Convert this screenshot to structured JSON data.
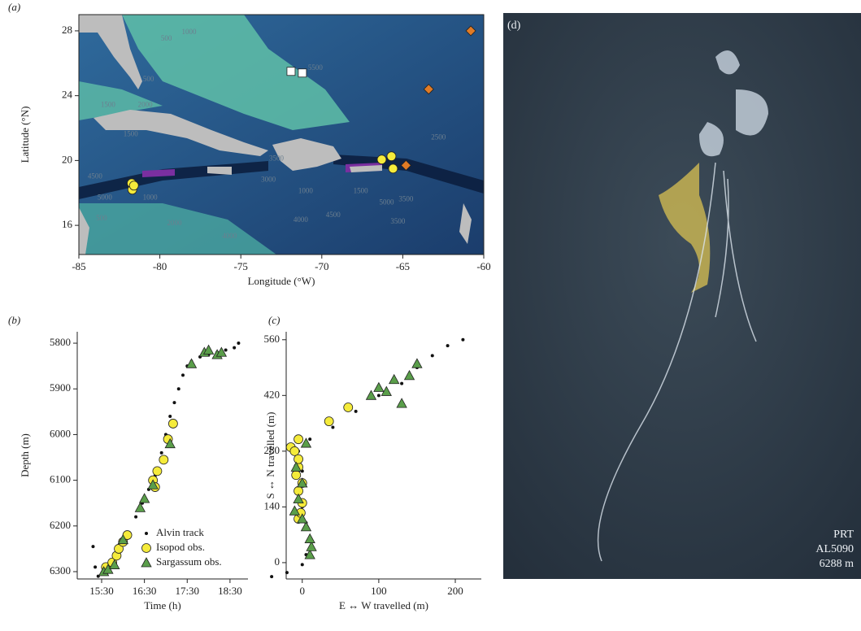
{
  "chart_data": [
    {
      "type": "scatter",
      "panel_label": "(a)",
      "xlabel": "Longitude (°W)",
      "ylabel": "Latitude (°N)",
      "xlim": [
        -85,
        -60
      ],
      "ylim": [
        14.2,
        29
      ],
      "xticks": [
        -85,
        -80,
        -75,
        -70,
        -65,
        -60
      ],
      "yticks": [
        16,
        20,
        24,
        28
      ],
      "frame": true,
      "series": [
        {
          "color": "#f5eb3b",
          "marker": "circle",
          "x": [
            -81.74,
            -81.7,
            -81.6,
            -66.3,
            -65.7,
            -65.6
          ],
          "y": [
            18.6,
            18.2,
            18.45,
            20.06,
            20.26,
            19.5
          ]
        },
        {
          "color": "#ffffff",
          "marker": "square",
          "x": [
            -71.9,
            -71.2
          ],
          "y": [
            25.5,
            25.4
          ]
        },
        {
          "color": "#e07b26",
          "marker": "diamond",
          "x": [
            -60.8,
            -63.4,
            -64.8
          ],
          "y": [
            28,
            24.4,
            19.7
          ]
        }
      ],
      "annotations": [
        {
          "text": "500",
          "x": -79.6,
          "y": 27.5
        },
        {
          "text": "1000",
          "x": -78.2,
          "y": 27.9
        },
        {
          "text": "500",
          "x": -80.7,
          "y": 25.0
        },
        {
          "text": "5500",
          "x": -70.4,
          "y": 25.7
        },
        {
          "text": "1500",
          "x": -83.2,
          "y": 23.4
        },
        {
          "text": "2000",
          "x": -80.9,
          "y": 23.4
        },
        {
          "text": "1500",
          "x": -81.8,
          "y": 21.6
        },
        {
          "text": "4500",
          "x": -84.0,
          "y": 19.0
        },
        {
          "text": "5000",
          "x": -83.4,
          "y": 17.7
        },
        {
          "text": "1000",
          "x": -80.6,
          "y": 17.7
        },
        {
          "text": "500",
          "x": -83.6,
          "y": 16.4
        },
        {
          "text": "2000",
          "x": -79.1,
          "y": 16.1
        },
        {
          "text": "4000",
          "x": -75.7,
          "y": 15.3
        },
        {
          "text": "3000",
          "x": -73.3,
          "y": 18.8
        },
        {
          "text": "4000",
          "x": -71.3,
          "y": 16.3
        },
        {
          "text": "4500",
          "x": -69.3,
          "y": 16.6
        },
        {
          "text": "3500",
          "x": -72.8,
          "y": 20.1
        },
        {
          "text": "1000",
          "x": -71.0,
          "y": 18.1
        },
        {
          "text": "1500",
          "x": -67.6,
          "y": 18.1
        },
        {
          "text": "5000",
          "x": -66.0,
          "y": 17.4
        },
        {
          "text": "3500",
          "x": -65.3,
          "y": 16.2
        },
        {
          "text": "2500",
          "x": -62.8,
          "y": 21.4
        },
        {
          "text": "3500",
          "x": -64.8,
          "y": 17.6
        }
      ]
    },
    {
      "type": "scatter",
      "panel_label": "(b)",
      "xlabel": "Time (h)",
      "ylabel": "Depth (m)",
      "xlim": [
        14.93,
        18.92
      ],
      "ylim": [
        6316,
        5775
      ],
      "xticks": [
        {
          "value": 15.5,
          "label": "15:30"
        },
        {
          "value": 16.5,
          "label": "16:30"
        },
        {
          "value": 17.5,
          "label": "17:30"
        },
        {
          "value": 18.5,
          "label": "18:30"
        }
      ],
      "yticks": [
        5800,
        5900,
        6000,
        6100,
        6200,
        6300
      ],
      "legend": "bottom-right",
      "series": [
        {
          "name": "Alvin track",
          "color": "#111111",
          "marker": "dot",
          "x": [
            15.3,
            15.35,
            15.42,
            15.55,
            15.7,
            15.85,
            16.0,
            16.15,
            16.3,
            16.45,
            16.6,
            16.75,
            16.9,
            17.0,
            17.1,
            17.2,
            17.3,
            17.4,
            17.5,
            17.6,
            17.8,
            18.0,
            18.2,
            18.4,
            18.6,
            18.7
          ],
          "y": [
            6245,
            6290,
            6310,
            6305,
            6290,
            6270,
            6240,
            6215,
            6180,
            6150,
            6120,
            6090,
            6040,
            6000,
            5960,
            5930,
            5900,
            5870,
            5850,
            5840,
            5830,
            5825,
            5820,
            5815,
            5810,
            5800
          ]
        },
        {
          "name": "Isopod obs.",
          "color": "#f5eb3b",
          "marker": "circle",
          "x": [
            15.6,
            15.75,
            15.85,
            15.9,
            16.0,
            16.1,
            16.7,
            16.75,
            16.8,
            16.95,
            17.05,
            17.17
          ],
          "y": [
            6290,
            6280,
            6265,
            6250,
            6235,
            6220,
            6100,
            6115,
            6080,
            6055,
            6010,
            5976
          ]
        },
        {
          "name": "Sargassum obs.",
          "color": "#5a9e4a",
          "marker": "triangle",
          "x": [
            15.55,
            15.65,
            15.8,
            16.0,
            16.4,
            16.5,
            16.7,
            17.1,
            17.6,
            17.9,
            18.0,
            18.2,
            18.3
          ],
          "y": [
            6300,
            6295,
            6285,
            6230,
            6160,
            6140,
            6110,
            6020,
            5845,
            5820,
            5815,
            5825,
            5820
          ]
        }
      ]
    },
    {
      "type": "scatter",
      "panel_label": "(c)",
      "xlabel": "E ↔ W travelled (m)",
      "ylabel": "S ↔ N travelled (m)",
      "xlim": [
        -21,
        234
      ],
      "ylim": [
        -41,
        580
      ],
      "xticks": [
        0,
        100,
        200
      ],
      "yticks": [
        0,
        140,
        280,
        420,
        560
      ],
      "series": [
        {
          "color": "#111111",
          "marker": "dot",
          "x": [
            -40,
            -20,
            0,
            5,
            10,
            5,
            0,
            -5,
            0,
            -5,
            10,
            40,
            70,
            100,
            130,
            150,
            170,
            190,
            210
          ],
          "y": [
            -35,
            -25,
            -5,
            20,
            60,
            100,
            140,
            180,
            230,
            280,
            310,
            340,
            380,
            420,
            450,
            490,
            520,
            545,
            560
          ]
        },
        {
          "color": "#f5eb3b",
          "marker": "circle",
          "x": [
            -15,
            -5,
            -10,
            -5,
            0,
            -5,
            0,
            -5,
            -2,
            35,
            60,
            -5,
            -8
          ],
          "y": [
            290,
            310,
            280,
            240,
            200,
            180,
            150,
            110,
            125,
            355,
            390,
            260,
            220
          ]
        },
        {
          "color": "#5a9e4a",
          "marker": "triangle",
          "x": [
            10,
            12,
            10,
            5,
            0,
            -10,
            -5,
            0,
            -8,
            5,
            90,
            110,
            120,
            140,
            150,
            130,
            100
          ],
          "y": [
            20,
            40,
            60,
            90,
            110,
            130,
            160,
            200,
            240,
            300,
            420,
            430,
            460,
            470,
            500,
            400,
            440
          ]
        }
      ]
    }
  ],
  "image_panel": {
    "panel_label": "(d)",
    "caption_lines": [
      "PRT",
      "AL5090",
      "6288 m"
    ]
  }
}
